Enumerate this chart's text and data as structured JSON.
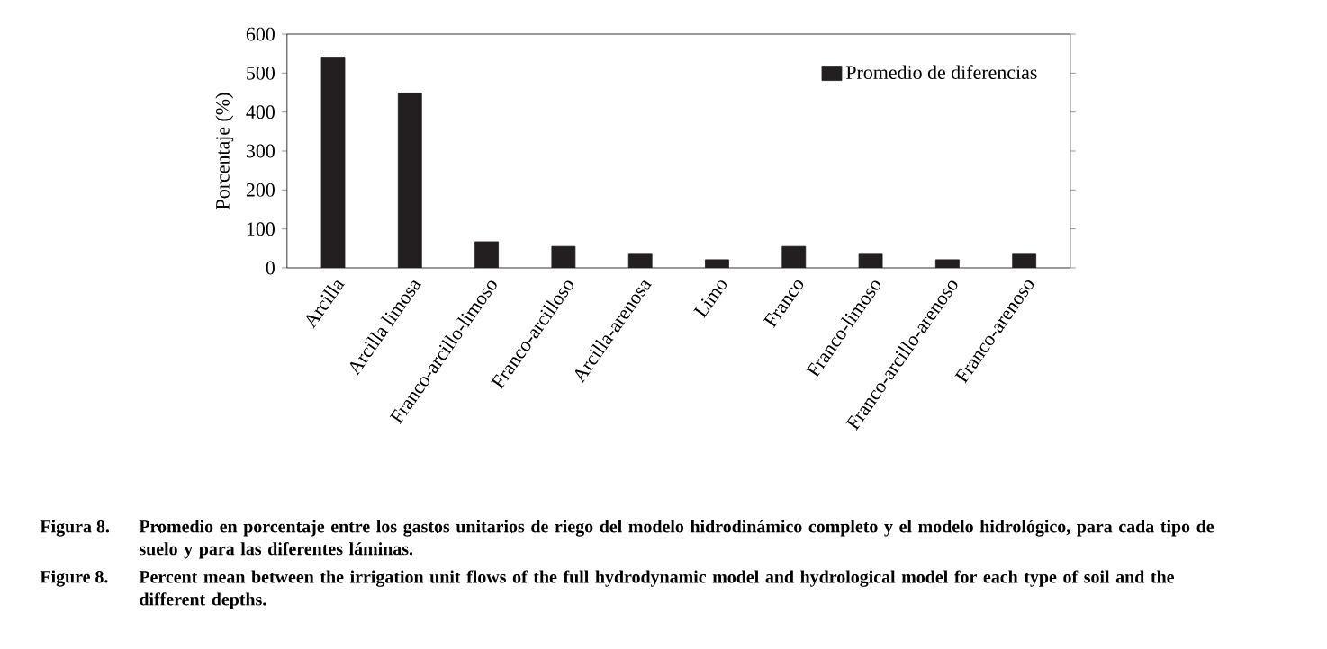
{
  "chart_data": {
    "type": "bar",
    "ylabel": "Porcentaje (%)",
    "categories": [
      "Arcilla",
      "Arcilla limosa",
      "Franco-arcillo-limoso",
      "Franco-arcilloso",
      "Arcilla-arenosa",
      "Limo",
      "Franco",
      "Franco-limoso",
      "Franco-arcillo-arenoso",
      "Franco-arenoso"
    ],
    "series": [
      {
        "name": "Promedio de diferencias",
        "color": "#231f20",
        "values": [
          541,
          449,
          67,
          55,
          35,
          21,
          55,
          35,
          21,
          35
        ]
      }
    ],
    "ylim": [
      0,
      600
    ],
    "yticks": [
      0,
      100,
      200,
      300,
      400,
      500,
      600
    ],
    "legend": "top right",
    "grid": false,
    "annotations": [
      "Figura 8.",
      "Promedio en porcentaje entre los gastos unitarios de riego del modelo hidrodinámico completo y el modelo hidrológico, para cada tipo de suelo y para las diferentes láminas.",
      "Figure 8.",
      "Percent mean between the irrigation unit flows of the full hydrodynamic model and hydrological model for each type of soil and the different depths."
    ]
  }
}
